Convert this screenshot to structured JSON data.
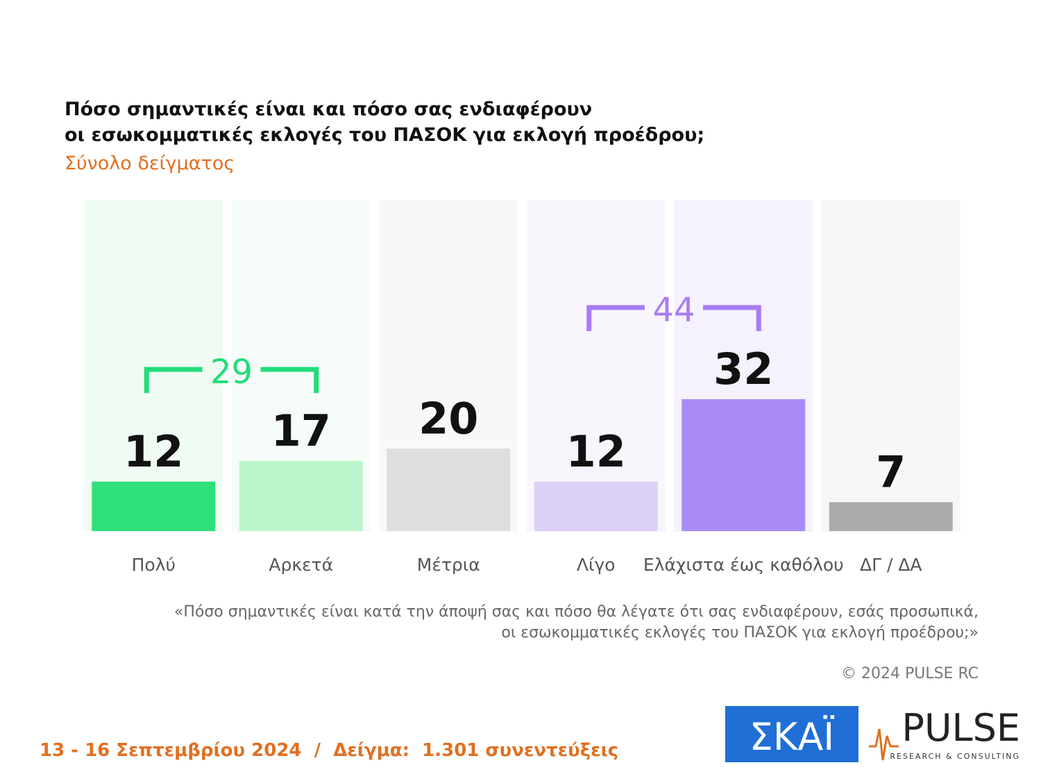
{
  "chart_data": {
    "type": "bar",
    "title": [
      "Πόσο σημαντικές είναι και πόσο σας ενδιαφέρουν",
      "οι εσωκομματικές εκλογές του ΠΑΣΟΚ για εκλογή προέδρου;"
    ],
    "subtitle": "Σύνολο δείγματος",
    "categories": [
      "Πολύ",
      "Αρκετά",
      "Μέτρια",
      "Λίγο",
      "Ελάχιστα έως καθόλου",
      "ΔΓ / ΔΑ"
    ],
    "values": [
      12,
      17,
      20,
      12,
      32,
      7
    ],
    "colors": [
      "#2fe07a",
      "#baf5cb",
      "#dedede",
      "#dcd0f6",
      "#a98bf6",
      "#ababab"
    ],
    "brackets": [
      {
        "value": 29,
        "bars": [
          0,
          1
        ],
        "color": "#22dd77"
      },
      {
        "value": 44,
        "bars": [
          3,
          4
        ],
        "color": "#a77cf5"
      }
    ],
    "note": [
      "«Πόσο σημαντικές είναι κατά την άποψή σας και πόσο θα λέγατε ότι σας ενδιαφέρουν, εσάς προσωπικά,",
      "οι εσωκομματικές εκλογές του ΠΑΣΟΚ για εκλογή προέδρου;»"
    ],
    "copyright": "© 2024 PULSE RC"
  },
  "footer": {
    "text": "13 - 16 Σεπτεμβρίου 2024  /  Δείγμα:  1.301 συνεντεύξεις",
    "logo_left": "ΣΚΑΪ",
    "logo_right": "PULSE",
    "logo_right_sub": "RESEARCH & CONSULTING"
  }
}
